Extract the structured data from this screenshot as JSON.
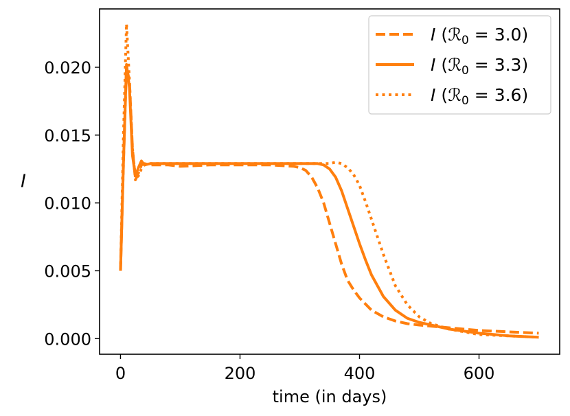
{
  "chart_data": {
    "type": "line",
    "xlabel": "time (in days)",
    "ylabel": "I",
    "xlim": [
      -35,
      735
    ],
    "ylim": [
      -0.00115,
      0.0243
    ],
    "xticks": [
      0,
      200,
      400,
      600
    ],
    "xtick_labels": [
      "0",
      "200",
      "400",
      "600"
    ],
    "yticks": [
      0.0,
      0.005,
      0.01,
      0.015,
      0.02
    ],
    "ytick_labels": [
      "0.000",
      "0.005",
      "0.010",
      "0.015",
      "0.020"
    ],
    "legend_position": "upper right",
    "color": "#ff7f0e",
    "series": [
      {
        "name_prefix": "I (",
        "name_sym": "ℛ",
        "name_sub": "0",
        "name_suffix": " = 3.0)",
        "dash": "dashed",
        "x": [
          0,
          5,
          10,
          15,
          20,
          25,
          30,
          35,
          40,
          50,
          60,
          80,
          100,
          150,
          200,
          250,
          290,
          300,
          310,
          320,
          330,
          340,
          350,
          360,
          370,
          380,
          390,
          400,
          420,
          440,
          460,
          480,
          500,
          550,
          600,
          650,
          700
        ],
        "y": [
          0.005,
          0.013,
          0.02,
          0.019,
          0.014,
          0.0117,
          0.0122,
          0.0128,
          0.0129,
          0.0128,
          0.0128,
          0.0128,
          0.0127,
          0.0128,
          0.0128,
          0.0128,
          0.0127,
          0.0126,
          0.0124,
          0.0119,
          0.0111,
          0.01,
          0.0085,
          0.007,
          0.0055,
          0.0043,
          0.0036,
          0.003,
          0.0021,
          0.0016,
          0.0013,
          0.0011,
          0.001,
          0.0008,
          0.0006,
          0.0005,
          0.0004
        ]
      },
      {
        "name_prefix": "I (",
        "name_sym": "ℛ",
        "name_sub": "0",
        "name_suffix": " = 3.3)",
        "dash": "solid",
        "x": [
          0,
          5,
          10,
          15,
          20,
          25,
          30,
          35,
          40,
          50,
          60,
          80,
          100,
          150,
          200,
          250,
          300,
          320,
          330,
          340,
          350,
          360,
          370,
          380,
          390,
          400,
          410,
          420,
          440,
          460,
          480,
          500,
          520,
          550,
          600,
          650,
          700
        ],
        "y": [
          0.005,
          0.013,
          0.0202,
          0.0185,
          0.0135,
          0.012,
          0.0126,
          0.0131,
          0.0128,
          0.0129,
          0.0129,
          0.0129,
          0.0129,
          0.0129,
          0.0129,
          0.0129,
          0.0129,
          0.0129,
          0.0129,
          0.0128,
          0.0125,
          0.0119,
          0.0109,
          0.0096,
          0.0083,
          0.007,
          0.0058,
          0.0047,
          0.0031,
          0.0021,
          0.0015,
          0.0012,
          0.001,
          0.0007,
          0.0004,
          0.0002,
          0.0001
        ]
      },
      {
        "name_prefix": "I (",
        "name_sym": "ℛ",
        "name_sub": "0",
        "name_suffix": " = 3.6)",
        "dash": "dotted",
        "x": [
          0,
          5,
          10,
          15,
          20,
          25,
          30,
          35,
          40,
          50,
          60,
          80,
          100,
          150,
          200,
          250,
          300,
          330,
          350,
          360,
          370,
          380,
          390,
          400,
          410,
          420,
          430,
          440,
          460,
          480,
          500,
          520,
          550,
          600,
          650,
          700
        ],
        "y": [
          0.005,
          0.015,
          0.0232,
          0.019,
          0.014,
          0.0118,
          0.012,
          0.0125,
          0.0128,
          0.0129,
          0.0129,
          0.0129,
          0.0129,
          0.0129,
          0.0129,
          0.0129,
          0.0129,
          0.0129,
          0.0129,
          0.013,
          0.0129,
          0.0126,
          0.0121,
          0.0113,
          0.0101,
          0.0088,
          0.0075,
          0.0062,
          0.0039,
          0.0025,
          0.0016,
          0.0011,
          0.0007,
          0.0003,
          0.0002,
          0.0001
        ]
      }
    ]
  }
}
